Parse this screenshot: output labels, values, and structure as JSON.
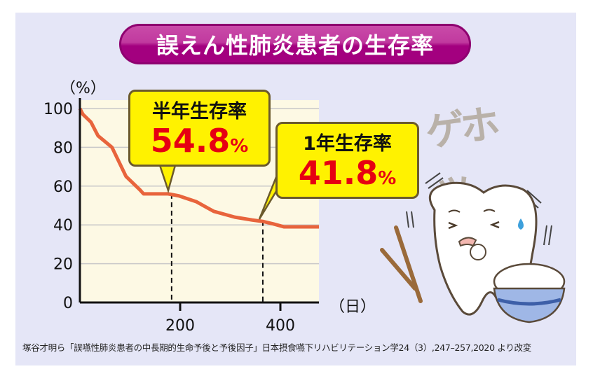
{
  "title": "誤えん性肺炎患者の生存率",
  "colors": {
    "line": "#e8643c",
    "plot_bg": "#fdf9e4",
    "title_bg": "#b0088a",
    "callout_bg": "#fff200",
    "callout_value": "#e60012"
  },
  "chart_data": {
    "type": "line",
    "title": "誤えん性肺炎患者の生存率",
    "xlabel": "（日）",
    "ylabel": "（%）",
    "xlim": [
      0,
      477
    ],
    "ylim": [
      0,
      100
    ],
    "xticks": [
      200,
      400
    ],
    "yticks": [
      0,
      20,
      40,
      60,
      80,
      100
    ],
    "grid": true,
    "series": [
      {
        "name": "生存率",
        "x": [
          0,
          6,
          22,
          36,
          64,
          92,
          120,
          127,
          176,
          197,
          232,
          253,
          267,
          309,
          344,
          365,
          386,
          407,
          477
        ],
        "y": [
          100,
          97,
          93,
          86,
          80,
          65,
          58,
          56,
          56,
          55,
          52,
          49,
          47,
          44,
          42.5,
          41.8,
          40.5,
          39,
          39
        ]
      }
    ],
    "annotations": [
      {
        "label": "半年生存率",
        "value": "54.8",
        "unit": "%",
        "x": 183
      },
      {
        "label": "1年生存率",
        "value": "41.8",
        "unit": "%",
        "x": 365
      }
    ]
  },
  "illustration": {
    "sound_effect": "ゲホッ"
  },
  "source": "塚谷才明ら「誤嚥性肺炎患者の中長期的生命予後と予後因子」日本摂食嚥下リハビリテーション学24（3）,247–257,2020 より改変"
}
